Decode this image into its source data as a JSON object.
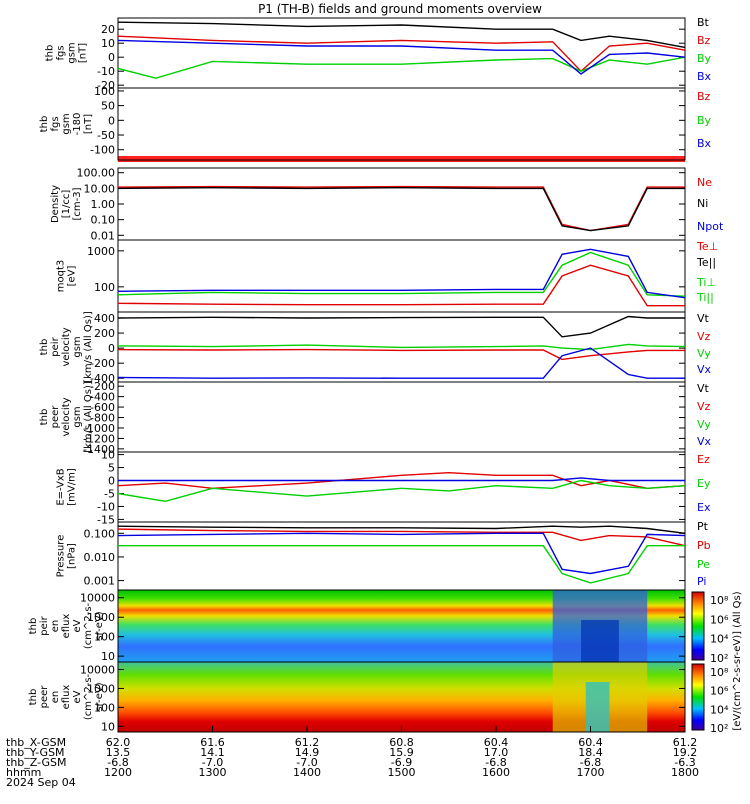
{
  "title": "P1 (TH-B) fields and ground moments overview",
  "colors": {
    "black": "#000000",
    "red": "#e00000",
    "green": "#00d000",
    "blue": "#0000e0",
    "red_bar": "#ff2020"
  },
  "chart_data": [
    {
      "type": "line",
      "ylabel": [
        "thb",
        "fgs",
        "gsm",
        "[nT]"
      ],
      "ylim": [
        -22,
        28
      ],
      "yticks": [
        "20",
        "10",
        "0",
        "-10",
        "-20"
      ],
      "ytick_values": [
        20,
        10,
        0,
        -10,
        -20
      ],
      "legend": [
        "Bt",
        "Bz",
        "By",
        "Bx"
      ],
      "series": [
        {
          "name": "Bt",
          "color": "black",
          "x": [
            12.0,
            13.0,
            14.0,
            15.0,
            16.0,
            16.6,
            16.9,
            17.2,
            17.6,
            18.0
          ],
          "values": [
            25,
            24,
            22,
            23,
            20,
            20,
            12,
            15,
            12,
            7
          ]
        },
        {
          "name": "Bz",
          "color": "red",
          "x": [
            12.0,
            13.0,
            14.0,
            15.0,
            16.0,
            16.6,
            16.9,
            17.2,
            17.6,
            18.0
          ],
          "values": [
            15,
            12,
            10,
            12,
            10,
            11,
            -10,
            8,
            10,
            5
          ]
        },
        {
          "name": "By",
          "color": "green",
          "x": [
            12.0,
            12.4,
            13.0,
            14.0,
            15.0,
            16.0,
            16.6,
            16.9,
            17.2,
            17.6,
            18.0
          ],
          "values": [
            -8,
            -15,
            -3,
            -5,
            -5,
            -2,
            -1,
            -10,
            -2,
            -5,
            0
          ]
        },
        {
          "name": "Bx",
          "color": "blue",
          "x": [
            12.0,
            13.0,
            14.0,
            15.0,
            16.0,
            16.6,
            16.9,
            17.2,
            17.6,
            18.0
          ],
          "values": [
            12,
            10,
            8,
            8,
            5,
            5,
            -12,
            2,
            3,
            0
          ]
        }
      ]
    },
    {
      "type": "line",
      "ylabel": [
        "thb",
        "fgs",
        "gsm",
        "-180",
        "[nT]"
      ],
      "ylim": [
        -135,
        110
      ],
      "yticks": [
        "100",
        "50",
        "0",
        "-50",
        "-100"
      ],
      "ytick_values": [
        100,
        50,
        0,
        -50,
        -100
      ],
      "legend": [
        "Bz",
        "By",
        "Bx"
      ],
      "series": []
    },
    {
      "type": "line",
      "ylabel": [
        "Density",
        "[1/cc]",
        "[cm-3]"
      ],
      "scale": "log",
      "ylim": [
        0.005,
        200
      ],
      "yticks": [
        "100.00",
        "10.00",
        "1.00",
        "0.10",
        "0.01"
      ],
      "ytick_values": [
        100,
        10,
        1,
        0.1,
        0.01
      ],
      "legend": [
        "Ne",
        "Ni",
        "Npot"
      ],
      "series": [
        {
          "name": "Ne",
          "color": "red",
          "x": [
            12.0,
            13.0,
            14.0,
            15.0,
            16.0,
            16.5,
            16.7,
            17.0,
            17.4,
            17.6,
            18.0
          ],
          "values": [
            12,
            13,
            12,
            13,
            12,
            12,
            0.05,
            0.02,
            0.05,
            12,
            12
          ]
        },
        {
          "name": "Ni",
          "color": "black",
          "x": [
            12.0,
            13.0,
            14.0,
            15.0,
            16.0,
            16.5,
            16.7,
            17.0,
            17.4,
            17.6,
            18.0
          ],
          "values": [
            10,
            11,
            10,
            11,
            10,
            10,
            0.04,
            0.02,
            0.04,
            10,
            10
          ]
        }
      ]
    },
    {
      "type": "line",
      "ylabel": [
        "moqt3",
        "[eV]"
      ],
      "scale": "log",
      "ylim": [
        20,
        2000
      ],
      "yticks": [
        "1000",
        "100"
      ],
      "ytick_values": [
        1000,
        100
      ],
      "legend": [
        "Te⊥",
        "Te||",
        "Ti⊥",
        "Ti||"
      ],
      "series": [
        {
          "name": "Ti||",
          "color": "green",
          "x": [
            12.0,
            13.0,
            14.0,
            15.0,
            16.0,
            16.5,
            16.7,
            17.0,
            17.4,
            17.6,
            18.0
          ],
          "values": [
            60,
            70,
            65,
            65,
            70,
            70,
            400,
            900,
            400,
            60,
            55
          ]
        },
        {
          "name": "Ti⊥",
          "color": "blue",
          "x": [
            12.0,
            13.0,
            14.0,
            15.0,
            16.0,
            16.5,
            16.7,
            17.0,
            17.4,
            17.6,
            18.0
          ],
          "values": [
            75,
            80,
            80,
            80,
            85,
            85,
            800,
            1100,
            700,
            70,
            50
          ]
        },
        {
          "name": "Te⊥",
          "color": "red",
          "x": [
            12.0,
            13.0,
            14.0,
            15.0,
            16.0,
            16.5,
            16.7,
            17.0,
            17.4,
            17.6,
            18.0
          ],
          "values": [
            35,
            33,
            32,
            32,
            33,
            33,
            200,
            400,
            200,
            30,
            30
          ]
        }
      ]
    },
    {
      "type": "line",
      "ylabel": [
        "thb",
        "peir",
        "velocity",
        "gsm",
        "[km/s (All Qs)]"
      ],
      "ylim": [
        -450,
        480
      ],
      "yticks": [
        "400",
        "200",
        "0",
        "-200",
        "-400"
      ],
      "ytick_values": [
        400,
        200,
        0,
        -200,
        -400
      ],
      "legend": [
        "Vt",
        "Vz",
        "Vy",
        "Vx"
      ],
      "series": [
        {
          "name": "Vt",
          "color": "black",
          "x": [
            12.0,
            13.0,
            14.0,
            15.0,
            16.0,
            16.5,
            16.7,
            17.0,
            17.4,
            17.6,
            18.0
          ],
          "values": [
            400,
            410,
            400,
            405,
            410,
            410,
            150,
            200,
            420,
            400,
            400
          ]
        },
        {
          "name": "Vy",
          "color": "green",
          "x": [
            12.0,
            13.0,
            14.0,
            15.0,
            16.0,
            16.5,
            16.7,
            17.0,
            17.4,
            17.6,
            18.0
          ],
          "values": [
            30,
            20,
            40,
            10,
            20,
            30,
            0,
            -20,
            50,
            30,
            20
          ]
        },
        {
          "name": "Vz",
          "color": "red",
          "x": [
            12.0,
            13.0,
            14.0,
            15.0,
            16.0,
            16.5,
            16.7,
            17.0,
            17.4,
            17.6,
            18.0
          ],
          "values": [
            -20,
            -25,
            -20,
            -30,
            -25,
            -25,
            -150,
            -100,
            -50,
            -30,
            -30
          ]
        },
        {
          "name": "Vx",
          "color": "blue",
          "x": [
            12.0,
            13.0,
            14.0,
            15.0,
            16.0,
            16.5,
            16.7,
            17.0,
            17.4,
            17.6,
            18.0
          ],
          "values": [
            -390,
            -400,
            -395,
            -400,
            -400,
            -400,
            -100,
            0,
            -350,
            -400,
            -400
          ]
        }
      ]
    },
    {
      "type": "line",
      "ylabel": [
        "thb",
        "peer",
        "velocity",
        "gsm",
        "[km/s (All Qs)]"
      ],
      "ylim": [
        -1460,
        -120
      ],
      "yticks": [
        "-200",
        "-400",
        "-600",
        "-800",
        "-1000",
        "-1200",
        "-1400"
      ],
      "ytick_values": [
        -200,
        -400,
        -600,
        -800,
        -1000,
        -1200,
        -1400
      ],
      "legend": [
        "Vt",
        "Vz",
        "Vy",
        "Vx"
      ],
      "series": []
    },
    {
      "type": "line",
      "ylabel": [
        "E=-VxB",
        "[mV/m]"
      ],
      "ylim": [
        -16,
        11
      ],
      "yticks": [
        "10",
        "5",
        "0",
        "-5",
        "-10",
        "-15"
      ],
      "ytick_values": [
        10,
        5,
        0,
        -5,
        -10,
        -15
      ],
      "legend": [
        "Ez",
        "Ey",
        "Ex"
      ],
      "series": [
        {
          "name": "Ez",
          "color": "red",
          "x": [
            12.0,
            12.5,
            13.0,
            14.0,
            15.0,
            15.5,
            16.0,
            16.6,
            16.9,
            17.2,
            17.6,
            18.0
          ],
          "values": [
            -2,
            -1,
            -3,
            -1,
            2,
            3,
            2,
            2,
            -2,
            0,
            -3,
            -2
          ]
        },
        {
          "name": "Ey",
          "color": "green",
          "x": [
            12.0,
            12.5,
            13.0,
            14.0,
            15.0,
            15.5,
            16.0,
            16.6,
            16.9,
            17.2,
            17.6,
            18.0
          ],
          "values": [
            -5,
            -8,
            -3,
            -6,
            -3,
            -4,
            -2,
            -3,
            0,
            -2,
            -3,
            -2
          ]
        },
        {
          "name": "Ex",
          "color": "blue",
          "x": [
            12.0,
            13.0,
            14.0,
            15.0,
            16.0,
            16.6,
            16.9,
            17.2,
            17.6,
            18.0
          ],
          "values": [
            0,
            0,
            0,
            0,
            0,
            0,
            1,
            0,
            0,
            0
          ]
        }
      ]
    },
    {
      "type": "line",
      "ylabel": [
        "Pressure",
        "[nPa]"
      ],
      "scale": "log",
      "ylim": [
        0.0004,
        0.3
      ],
      "yticks": [
        "0.100",
        "0.010",
        "0.001"
      ],
      "ytick_values": [
        0.1,
        0.01,
        0.001
      ],
      "legend": [
        "Pt",
        "Pb",
        "Pe",
        "Pi"
      ],
      "series": [
        {
          "name": "Pt",
          "color": "black",
          "x": [
            12.0,
            13.0,
            14.0,
            15.0,
            16.0,
            16.6,
            16.9,
            17.2,
            17.6,
            18.0
          ],
          "values": [
            0.2,
            0.18,
            0.17,
            0.17,
            0.16,
            0.2,
            0.18,
            0.2,
            0.16,
            0.1
          ]
        },
        {
          "name": "Pb",
          "color": "red",
          "x": [
            12.0,
            13.0,
            14.0,
            15.0,
            16.0,
            16.6,
            16.9,
            17.2,
            17.6,
            18.0
          ],
          "values": [
            0.15,
            0.13,
            0.12,
            0.12,
            0.11,
            0.11,
            0.05,
            0.08,
            0.07,
            0.03
          ]
        },
        {
          "name": "Pi",
          "color": "blue",
          "x": [
            12.0,
            13.0,
            14.0,
            15.0,
            16.0,
            16.5,
            16.7,
            17.0,
            17.4,
            17.6,
            18.0
          ],
          "values": [
            0.08,
            0.09,
            0.1,
            0.09,
            0.1,
            0.1,
            0.003,
            0.002,
            0.004,
            0.09,
            0.08
          ]
        },
        {
          "name": "Pe",
          "color": "green",
          "x": [
            12.0,
            13.0,
            14.0,
            15.0,
            16.0,
            16.5,
            16.7,
            17.0,
            17.4,
            17.6,
            18.0
          ],
          "values": [
            0.03,
            0.03,
            0.03,
            0.03,
            0.03,
            0.03,
            0.002,
            0.0008,
            0.002,
            0.03,
            0.03
          ]
        }
      ]
    },
    {
      "type": "heatmap",
      "ylabel": [
        "thb",
        "peir",
        "en",
        "eflux",
        "eV",
        "(cm^2-s-",
        "sr-eV)"
      ],
      "scale": "log",
      "ylim": [
        5,
        25000
      ],
      "yticks": [
        "10000",
        "1000",
        "100",
        "10"
      ],
      "ytick_values": [
        10000,
        1000,
        100,
        10
      ],
      "colorbar_ticks": [
        "10⁸",
        "10⁶",
        "10⁴",
        "10²"
      ]
    },
    {
      "type": "heatmap",
      "ylabel": [
        "thb",
        "peer",
        "en",
        "eflux",
        "eV",
        "(cm^2-s-",
        "sr-eV)"
      ],
      "scale": "log",
      "ylim": [
        5,
        25000
      ],
      "yticks": [
        "10000",
        "1000",
        "100",
        "10"
      ],
      "ytick_values": [
        10000,
        1000,
        100,
        10
      ],
      "colorbar_ticks": [
        "10⁸",
        "10⁶",
        "10⁴",
        "10²"
      ]
    }
  ],
  "colorbar_label": "[eV/(cm^2-s-sr-eV)] (All Qs)",
  "xaxis": {
    "rows": [
      {
        "label": "thb_X-GSM",
        "values": [
          "62.0",
          "61.6",
          "61.2",
          "60.8",
          "60.4",
          "60.4",
          "61.2"
        ]
      },
      {
        "label": "thb_Y-GSM",
        "values": [
          "13.5",
          "14.1",
          "14.9",
          "15.9",
          "17.0",
          "18.4",
          "19.2"
        ]
      },
      {
        "label": "thb_Z-GSM",
        "values": [
          "-6.8",
          "-7.0",
          "-7.0",
          "-6.9",
          "-6.8",
          "-6.8",
          "-6.3"
        ]
      },
      {
        "label": "hhmm",
        "values": [
          "1200",
          "1300",
          "1400",
          "1500",
          "1600",
          "1700",
          "1800"
        ]
      }
    ],
    "date": "2024 Sep 04",
    "range_hours": [
      12,
      18
    ]
  }
}
